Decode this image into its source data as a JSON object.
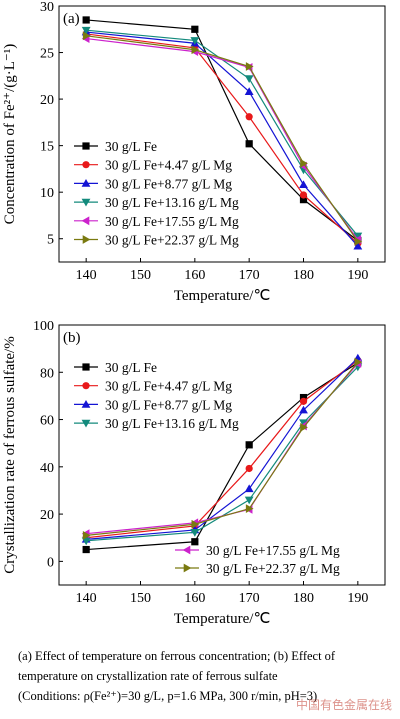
{
  "chart_data": [
    {
      "type": "line",
      "panel_label": "(a)",
      "xlabel": "Temperature/℃",
      "ylabel": "Concentration of Fe²⁺/(g·L⁻¹)",
      "x": [
        140,
        160,
        170,
        180,
        190
      ],
      "xlim": [
        135,
        195
      ],
      "ylim": [
        2.5,
        30
      ],
      "xticks": [
        140,
        150,
        160,
        170,
        180,
        190
      ],
      "yticks": [
        5,
        10,
        15,
        20,
        25,
        30
      ],
      "legend": "bottom-left",
      "series": [
        {
          "name": "30 g/L Fe",
          "values": [
            28.5,
            27.5,
            15.2,
            9.2,
            4.8
          ],
          "color": "#000000",
          "marker": "square"
        },
        {
          "name": "30 g/L Fe+4.47 g/L Mg",
          "values": [
            27.0,
            25.5,
            18.1,
            9.7,
            4.5
          ],
          "color": "#e8191a",
          "marker": "circle"
        },
        {
          "name": "30 g/L Fe+8.77 g/L Mg",
          "values": [
            27.2,
            26.0,
            20.8,
            10.8,
            4.2
          ],
          "color": "#1414d4",
          "marker": "triangle-up"
        },
        {
          "name": "30 g/L Fe+13.16 g/L Mg",
          "values": [
            27.4,
            26.3,
            22.2,
            12.4,
            5.3
          ],
          "color": "#138a7c",
          "marker": "triangle-down"
        },
        {
          "name": "30 g/L Fe+17.55 g/L Mg",
          "values": [
            26.5,
            25.1,
            23.4,
            12.8,
            4.9
          ],
          "color": "#cc22cc",
          "marker": "triangle-left"
        },
        {
          "name": "30 g/L Fe+22.37 g/L Mg",
          "values": [
            26.8,
            25.3,
            23.5,
            13.1,
            4.7
          ],
          "color": "#7a7a10",
          "marker": "triangle-right"
        }
      ]
    },
    {
      "type": "line",
      "panel_label": "(b)",
      "xlabel": "Temperature/℃",
      "ylabel": "Crystallization rate of ferrous sulfate/%",
      "x": [
        140,
        160,
        170,
        180,
        190
      ],
      "xlim": [
        135,
        195
      ],
      "ylim": [
        -10,
        100
      ],
      "xticks": [
        140,
        150,
        160,
        170,
        180,
        190
      ],
      "yticks": [
        0,
        20,
        40,
        60,
        80,
        100
      ],
      "legend": "top-left and bottom-right",
      "series": [
        {
          "name": "30 g/L Fe",
          "values": [
            5.0,
            8.3,
            49.3,
            69.3,
            84.0
          ],
          "color": "#000000",
          "marker": "square"
        },
        {
          "name": "30 g/L Fe+4.47 g/L Mg",
          "values": [
            10.0,
            15.0,
            39.3,
            67.7,
            85.0
          ],
          "color": "#e8191a",
          "marker": "circle"
        },
        {
          "name": "30 g/L Fe+8.77 g/L Mg",
          "values": [
            9.3,
            13.3,
            30.7,
            64.0,
            86.0
          ],
          "color": "#1414d4",
          "marker": "triangle-up"
        },
        {
          "name": "30 g/L Fe+13.16 g/L Mg",
          "values": [
            8.7,
            12.3,
            26.0,
            58.7,
            82.3
          ],
          "color": "#138a7c",
          "marker": "triangle-down"
        },
        {
          "name": "30 g/L Fe+17.55 g/L Mg",
          "values": [
            11.7,
            16.3,
            22.0,
            57.3,
            83.7
          ],
          "color": "#cc22cc",
          "marker": "triangle-left"
        },
        {
          "name": "30 g/L Fe+22.37 g/L Mg",
          "values": [
            11.0,
            15.7,
            22.3,
            56.7,
            84.3
          ],
          "color": "#7a7a10",
          "marker": "triangle-right"
        }
      ]
    }
  ],
  "caption": {
    "line1": "(a) Effect of temperature on ferrous concentration; (b) Effect of",
    "line2": "temperature on crystallization rate of ferrous sulfate",
    "line3": "(Conditions: ρ(Fe²⁺)=30 g/L, p=1.6 MPa, 300 r/min, pH=3)"
  },
  "watermark": "中国有色金属在线"
}
